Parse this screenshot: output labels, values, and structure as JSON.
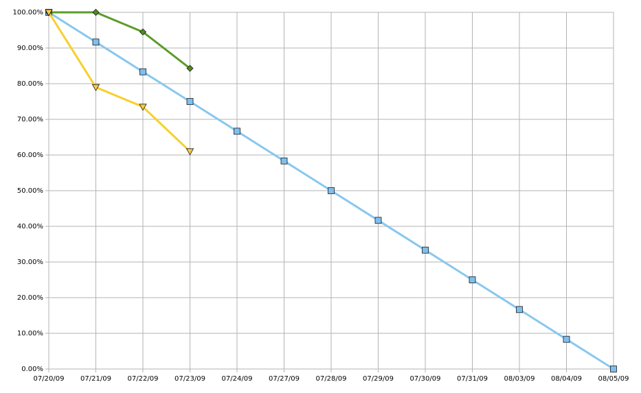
{
  "chart_data": {
    "type": "line",
    "categories": [
      "07/20/09",
      "07/21/09",
      "07/22/09",
      "07/23/09",
      "07/24/09",
      "07/27/09",
      "07/28/09",
      "07/29/09",
      "07/30/09",
      "07/31/09",
      "08/03/09",
      "08/04/09",
      "08/05/09"
    ],
    "series": [
      {
        "color": "#87c8ef",
        "marker": "square",
        "marker_fill": "#7ebff0",
        "values": [
          100,
          91.67,
          83.33,
          75,
          66.67,
          58.33,
          50,
          41.67,
          33.33,
          25,
          16.67,
          8.33,
          0
        ]
      },
      {
        "color": "#5b9b2a",
        "marker": "diamond",
        "marker_fill": "#4f8a24",
        "values": [
          100,
          100,
          94.5,
          84.3,
          null,
          null,
          null,
          null,
          null,
          null,
          null,
          null,
          null
        ]
      },
      {
        "color": "#f8cf2c",
        "marker": "triangle-down",
        "marker_fill": "#f6c94a",
        "values": [
          100,
          79,
          73.5,
          61,
          null,
          null,
          null,
          null,
          null,
          null,
          null,
          null,
          null
        ]
      }
    ],
    "ylim": [
      0,
      100
    ],
    "yticks": [
      {
        "value": 0,
        "label": "0.00%"
      },
      {
        "value": 10,
        "label": "10.00%"
      },
      {
        "value": 20,
        "label": "20.00%"
      },
      {
        "value": 30,
        "label": "30.00%"
      },
      {
        "value": 40,
        "label": "40.00%"
      },
      {
        "value": 50,
        "label": "50.00%"
      },
      {
        "value": 60,
        "label": "60.00%"
      },
      {
        "value": 70,
        "label": "70.00%"
      },
      {
        "value": 80,
        "label": "80.00%"
      },
      {
        "value": 90,
        "label": "90.00%"
      },
      {
        "value": 100,
        "label": "100.00%"
      }
    ],
    "grid": true
  }
}
